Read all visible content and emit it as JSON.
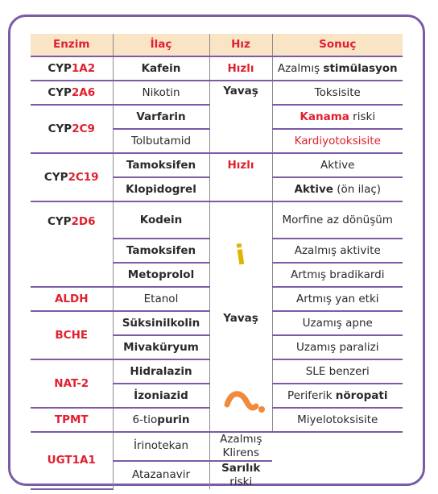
{
  "headers": {
    "enzim": "Enzim",
    "ilac": "İlaç",
    "hiz": "Hız",
    "sonuc": "Sonuç"
  },
  "rows": {
    "r1": {
      "enz_a": "CYP",
      "enz_b": "1A2",
      "ilac": "Kafein",
      "hiz": "Hızlı",
      "res_a": "Azalmış ",
      "res_b": "stimülasyon"
    },
    "r2": {
      "enz_a": "CYP",
      "enz_b": "2A6",
      "ilac": "Nikotin",
      "res": "Toksisite"
    },
    "r3": {
      "enz_a": "CYP",
      "enz_b": "2C9",
      "ilac": "Varfarin",
      "res_a": "Kanama",
      "res_b": " riski"
    },
    "r4": {
      "ilac": "Tolbutamid",
      "res": "Kardiyotoksisite"
    },
    "r5": {
      "enz_a": "CYP",
      "enz_b": "2C19",
      "ilac": "Tamoksifen",
      "hiz": "Hızlı",
      "res": "Aktive"
    },
    "r6": {
      "ilac": "Klopidogrel",
      "res_a": "Aktive",
      "res_b": " (ön ilaç)"
    },
    "r7": {
      "enz_a": "CYP",
      "enz_b": "2D6",
      "ilac": "Kodein",
      "res": "Morfine az dönüşüm"
    },
    "r8": {
      "ilac": "Tamoksifen",
      "res": "Azalmış aktivite"
    },
    "r9": {
      "ilac": "Metoprolol",
      "res": "Artmış bradikardi"
    },
    "r10": {
      "enz": "ALDH",
      "ilac": "Etanol",
      "res": "Artmış yan etki"
    },
    "r11": {
      "enz": "BCHE",
      "ilac": "Süksinilkolin",
      "res": "Uzamış apne"
    },
    "r12": {
      "ilac": "Mivaküryum",
      "res": "Uzamış paralizi"
    },
    "r13": {
      "enz": "NAT-2",
      "ilac": "Hidralazin",
      "res": "SLE benzeri"
    },
    "r14": {
      "ilac": "İzoniazid",
      "res_a": "Periferik ",
      "res_b": "nöropati"
    },
    "r15": {
      "enz": "TPMT",
      "ilac_a": "6-tio",
      "ilac_b": "purin",
      "res": "Miyelotoksisite"
    },
    "r16": {
      "enz": "UGT1A1",
      "ilac": "İrinotekan",
      "res": "Azalmış Klirens"
    },
    "r17": {
      "ilac": "Atazanavir",
      "res_a": "Sarılık",
      "res_b": " riski"
    }
  },
  "hiz_yavas_1": "Yavaş",
  "hiz_yavas_2": "Yavaş",
  "deco_i": "i",
  "colors": {
    "frame": "#7b5aa6",
    "header_bg": "#f9e4c5",
    "accent_red": "#e02030",
    "deco_yellow": "#e0b400",
    "deco_orange": "#f08a3c"
  }
}
